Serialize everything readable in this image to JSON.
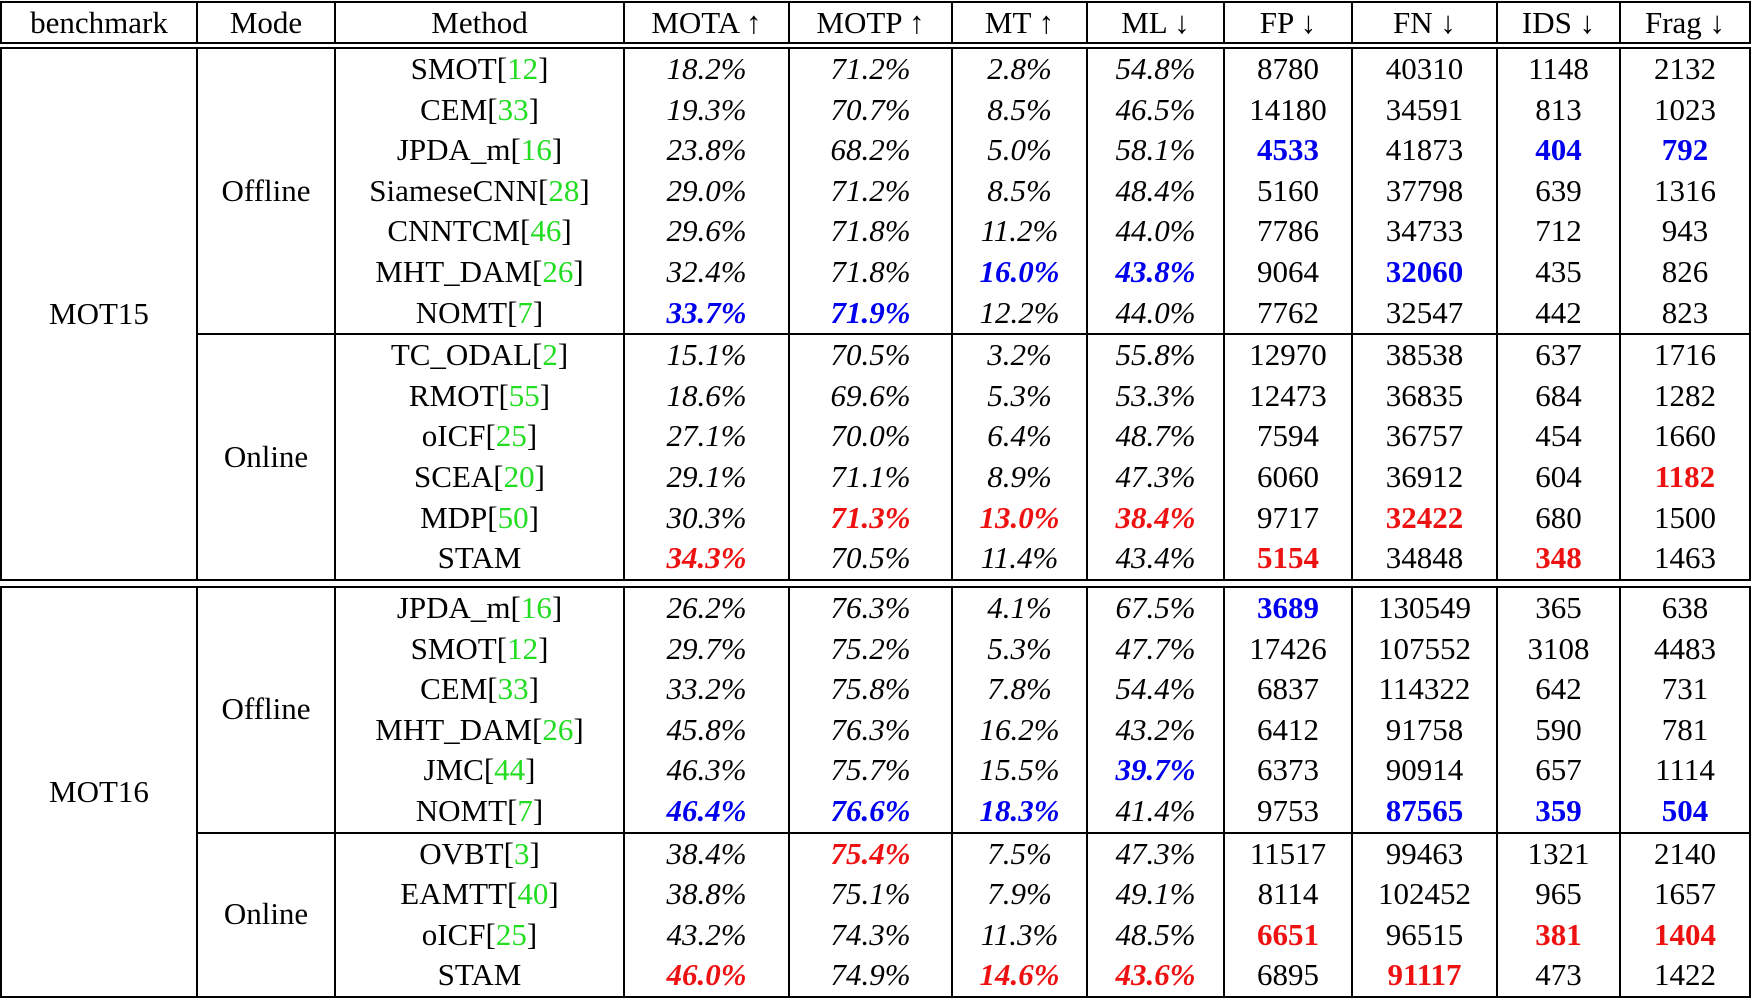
{
  "columns": [
    "benchmark",
    "Mode",
    "Method",
    "MOTA ↑",
    "MOTP ↑",
    "MT ↑",
    "ML ↓",
    "FP ↓",
    "FN ↓",
    "IDS ↓",
    "Frag ↓"
  ],
  "colors": {
    "best_offline": "#0000ee",
    "best_online": "#ee1111",
    "reference": "#22dd22"
  },
  "groups": [
    {
      "benchmark": "MOT15",
      "modes": [
        {
          "mode": "Offline",
          "rows": [
            {
              "method": "SMOT",
              "ref": "12",
              "cells": [
                [
                  "18.2%",
                  ""
                ],
                [
                  "71.2%",
                  ""
                ],
                [
                  "2.8%",
                  ""
                ],
                [
                  "54.8%",
                  ""
                ],
                [
                  "8780",
                  ""
                ],
                [
                  "40310",
                  ""
                ],
                [
                  "1148",
                  ""
                ],
                [
                  "2132",
                  ""
                ]
              ]
            },
            {
              "method": "CEM",
              "ref": "33",
              "cells": [
                [
                  "19.3%",
                  ""
                ],
                [
                  "70.7%",
                  ""
                ],
                [
                  "8.5%",
                  ""
                ],
                [
                  "46.5%",
                  ""
                ],
                [
                  "14180",
                  ""
                ],
                [
                  "34591",
                  ""
                ],
                [
                  "813",
                  ""
                ],
                [
                  "1023",
                  ""
                ]
              ]
            },
            {
              "method": "JPDA_m",
              "ref": "16",
              "cells": [
                [
                  "23.8%",
                  ""
                ],
                [
                  "68.2%",
                  ""
                ],
                [
                  "5.0%",
                  ""
                ],
                [
                  "58.1%",
                  ""
                ],
                [
                  "4533",
                  "blue"
                ],
                [
                  "41873",
                  ""
                ],
                [
                  "404",
                  "blue"
                ],
                [
                  "792",
                  "blue"
                ]
              ]
            },
            {
              "method": "SiameseCNN",
              "ref": "28",
              "cells": [
                [
                  "29.0%",
                  ""
                ],
                [
                  "71.2%",
                  ""
                ],
                [
                  "8.5%",
                  ""
                ],
                [
                  "48.4%",
                  ""
                ],
                [
                  "5160",
                  ""
                ],
                [
                  "37798",
                  ""
                ],
                [
                  "639",
                  ""
                ],
                [
                  "1316",
                  ""
                ]
              ]
            },
            {
              "method": "CNNTCM",
              "ref": "46",
              "cells": [
                [
                  "29.6%",
                  ""
                ],
                [
                  "71.8%",
                  ""
                ],
                [
                  "11.2%",
                  ""
                ],
                [
                  "44.0%",
                  ""
                ],
                [
                  "7786",
                  ""
                ],
                [
                  "34733",
                  ""
                ],
                [
                  "712",
                  ""
                ],
                [
                  "943",
                  ""
                ]
              ]
            },
            {
              "method": "MHT_DAM",
              "ref": "26",
              "cells": [
                [
                  "32.4%",
                  ""
                ],
                [
                  "71.8%",
                  ""
                ],
                [
                  "16.0%",
                  "blue"
                ],
                [
                  "43.8%",
                  "blue"
                ],
                [
                  "9064",
                  ""
                ],
                [
                  "32060",
                  "blue"
                ],
                [
                  "435",
                  ""
                ],
                [
                  "826",
                  ""
                ]
              ]
            },
            {
              "method": "NOMT",
              "ref": "7",
              "cells": [
                [
                  "33.7%",
                  "blue"
                ],
                [
                  "71.9%",
                  "blue"
                ],
                [
                  "12.2%",
                  ""
                ],
                [
                  "44.0%",
                  ""
                ],
                [
                  "7762",
                  ""
                ],
                [
                  "32547",
                  ""
                ],
                [
                  "442",
                  ""
                ],
                [
                  "823",
                  ""
                ]
              ]
            }
          ]
        },
        {
          "mode": "Online",
          "rows": [
            {
              "method": "TC_ODAL",
              "ref": "2",
              "cells": [
                [
                  "15.1%",
                  ""
                ],
                [
                  "70.5%",
                  ""
                ],
                [
                  "3.2%",
                  ""
                ],
                [
                  "55.8%",
                  ""
                ],
                [
                  "12970",
                  ""
                ],
                [
                  "38538",
                  ""
                ],
                [
                  "637",
                  ""
                ],
                [
                  "1716",
                  ""
                ]
              ]
            },
            {
              "method": "RMOT",
              "ref": "55",
              "cells": [
                [
                  "18.6%",
                  ""
                ],
                [
                  "69.6%",
                  ""
                ],
                [
                  "5.3%",
                  ""
                ],
                [
                  "53.3%",
                  ""
                ],
                [
                  "12473",
                  ""
                ],
                [
                  "36835",
                  ""
                ],
                [
                  "684",
                  ""
                ],
                [
                  "1282",
                  ""
                ]
              ]
            },
            {
              "method": "oICF",
              "ref": "25",
              "cells": [
                [
                  "27.1%",
                  ""
                ],
                [
                  "70.0%",
                  ""
                ],
                [
                  "6.4%",
                  ""
                ],
                [
                  "48.7%",
                  ""
                ],
                [
                  "7594",
                  ""
                ],
                [
                  "36757",
                  ""
                ],
                [
                  "454",
                  ""
                ],
                [
                  "1660",
                  ""
                ]
              ]
            },
            {
              "method": "SCEA",
              "ref": "20",
              "cells": [
                [
                  "29.1%",
                  ""
                ],
                [
                  "71.1%",
                  ""
                ],
                [
                  "8.9%",
                  ""
                ],
                [
                  "47.3%",
                  ""
                ],
                [
                  "6060",
                  ""
                ],
                [
                  "36912",
                  ""
                ],
                [
                  "604",
                  ""
                ],
                [
                  "1182",
                  "red"
                ]
              ]
            },
            {
              "method": "MDP",
              "ref": "50",
              "cells": [
                [
                  "30.3%",
                  ""
                ],
                [
                  "71.3%",
                  "red"
                ],
                [
                  "13.0%",
                  "red"
                ],
                [
                  "38.4%",
                  "red"
                ],
                [
                  "9717",
                  ""
                ],
                [
                  "32422",
                  "red"
                ],
                [
                  "680",
                  ""
                ],
                [
                  "1500",
                  ""
                ]
              ]
            },
            {
              "method": "STAM",
              "ref": "",
              "cells": [
                [
                  "34.3%",
                  "red"
                ],
                [
                  "70.5%",
                  ""
                ],
                [
                  "11.4%",
                  ""
                ],
                [
                  "43.4%",
                  ""
                ],
                [
                  "5154",
                  "red"
                ],
                [
                  "34848",
                  ""
                ],
                [
                  "348",
                  "red"
                ],
                [
                  "1463",
                  ""
                ]
              ]
            }
          ]
        }
      ]
    },
    {
      "benchmark": "MOT16",
      "modes": [
        {
          "mode": "Offline",
          "rows": [
            {
              "method": "JPDA_m",
              "ref": "16",
              "cells": [
                [
                  "26.2%",
                  ""
                ],
                [
                  "76.3%",
                  ""
                ],
                [
                  "4.1%",
                  ""
                ],
                [
                  "67.5%",
                  ""
                ],
                [
                  "3689",
                  "blue"
                ],
                [
                  "130549",
                  ""
                ],
                [
                  "365",
                  ""
                ],
                [
                  "638",
                  ""
                ]
              ]
            },
            {
              "method": "SMOT",
              "ref": "12",
              "cells": [
                [
                  "29.7%",
                  ""
                ],
                [
                  "75.2%",
                  ""
                ],
                [
                  "5.3%",
                  ""
                ],
                [
                  "47.7%",
                  ""
                ],
                [
                  "17426",
                  ""
                ],
                [
                  "107552",
                  ""
                ],
                [
                  "3108",
                  ""
                ],
                [
                  "4483",
                  ""
                ]
              ]
            },
            {
              "method": "CEM",
              "ref": "33",
              "cells": [
                [
                  "33.2%",
                  ""
                ],
                [
                  "75.8%",
                  ""
                ],
                [
                  "7.8%",
                  ""
                ],
                [
                  "54.4%",
                  ""
                ],
                [
                  "6837",
                  ""
                ],
                [
                  "114322",
                  ""
                ],
                [
                  "642",
                  ""
                ],
                [
                  "731",
                  ""
                ]
              ]
            },
            {
              "method": "MHT_DAM",
              "ref": "26",
              "cells": [
                [
                  "45.8%",
                  ""
                ],
                [
                  "76.3%",
                  ""
                ],
                [
                  "16.2%",
                  ""
                ],
                [
                  "43.2%",
                  ""
                ],
                [
                  "6412",
                  ""
                ],
                [
                  "91758",
                  ""
                ],
                [
                  "590",
                  ""
                ],
                [
                  "781",
                  ""
                ]
              ]
            },
            {
              "method": "JMC",
              "ref": "44",
              "cells": [
                [
                  "46.3%",
                  ""
                ],
                [
                  "75.7%",
                  ""
                ],
                [
                  "15.5%",
                  ""
                ],
                [
                  "39.7%",
                  "blue"
                ],
                [
                  "6373",
                  ""
                ],
                [
                  "90914",
                  ""
                ],
                [
                  "657",
                  ""
                ],
                [
                  "1114",
                  ""
                ]
              ]
            },
            {
              "method": "NOMT",
              "ref": "7",
              "cells": [
                [
                  "46.4%",
                  "blue"
                ],
                [
                  "76.6%",
                  "blue"
                ],
                [
                  "18.3%",
                  "blue"
                ],
                [
                  "41.4%",
                  ""
                ],
                [
                  "9753",
                  ""
                ],
                [
                  "87565",
                  "blue"
                ],
                [
                  "359",
                  "blue"
                ],
                [
                  "504",
                  "blue"
                ]
              ]
            }
          ]
        },
        {
          "mode": "Online",
          "rows": [
            {
              "method": "OVBT",
              "ref": "3",
              "cells": [
                [
                  "38.4%",
                  ""
                ],
                [
                  "75.4%",
                  "red"
                ],
                [
                  "7.5%",
                  ""
                ],
                [
                  "47.3%",
                  ""
                ],
                [
                  "11517",
                  ""
                ],
                [
                  "99463",
                  ""
                ],
                [
                  "1321",
                  ""
                ],
                [
                  "2140",
                  ""
                ]
              ]
            },
            {
              "method": "EAMTT",
              "ref": "40",
              "cells": [
                [
                  "38.8%",
                  ""
                ],
                [
                  "75.1%",
                  ""
                ],
                [
                  "7.9%",
                  ""
                ],
                [
                  "49.1%",
                  ""
                ],
                [
                  "8114",
                  ""
                ],
                [
                  "102452",
                  ""
                ],
                [
                  "965",
                  ""
                ],
                [
                  "1657",
                  ""
                ]
              ]
            },
            {
              "method": "oICF",
              "ref": "25",
              "cells": [
                [
                  "43.2%",
                  ""
                ],
                [
                  "74.3%",
                  ""
                ],
                [
                  "11.3%",
                  ""
                ],
                [
                  "48.5%",
                  ""
                ],
                [
                  "6651",
                  "red"
                ],
                [
                  "96515",
                  ""
                ],
                [
                  "381",
                  "red"
                ],
                [
                  "1404",
                  "red"
                ]
              ]
            },
            {
              "method": "STAM",
              "ref": "",
              "cells": [
                [
                  "46.0%",
                  "red"
                ],
                [
                  "74.9%",
                  ""
                ],
                [
                  "14.6%",
                  "red"
                ],
                [
                  "43.6%",
                  "red"
                ],
                [
                  "6895",
                  ""
                ],
                [
                  "91117",
                  "red"
                ],
                [
                  "473",
                  ""
                ],
                [
                  "1422",
                  ""
                ]
              ]
            }
          ]
        }
      ]
    }
  ]
}
